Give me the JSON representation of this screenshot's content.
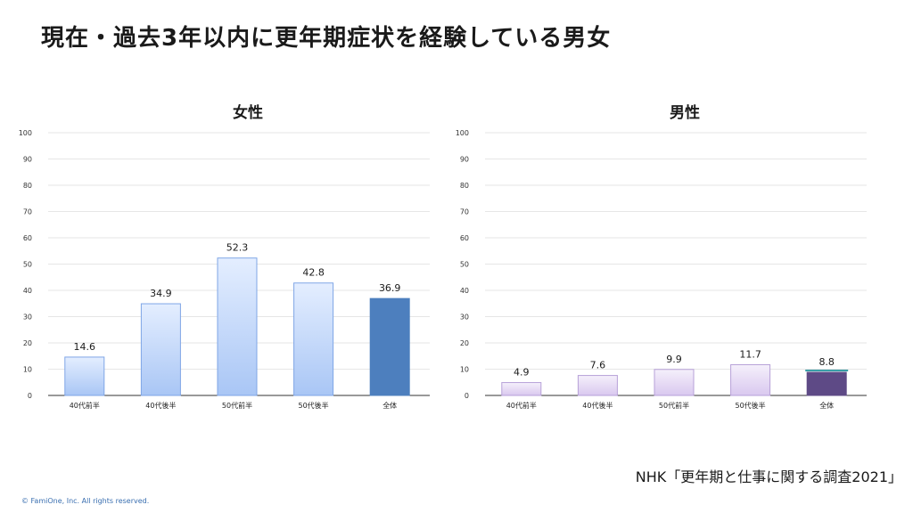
{
  "page": {
    "title": "現在・過去3年以内に更年期症状を経験している男女",
    "source": "NHK「更年期と仕事に関する調査2021」",
    "copyright": "© FamiOne, Inc. All rights reserved."
  },
  "colors": {
    "female_bar_light_top": "#e4eeff",
    "female_bar_light_bottom": "#a9c6f5",
    "female_bar_stroke": "#7fa6e6",
    "female_total": "#4d7fbe",
    "male_bar_light_top": "#f5f0fb",
    "male_bar_light_bottom": "#d9c8ef",
    "male_bar_stroke": "#b7a1d8",
    "male_total": "#5e4a86",
    "male_total_line": "#3a9fa8",
    "grid": "#e6e6e6",
    "axis": "#333333"
  },
  "chart_data": [
    {
      "type": "bar",
      "title": "女性",
      "categories": [
        "40代前半",
        "40代後半",
        "50代前半",
        "50代後半",
        "全体"
      ],
      "values": [
        14.6,
        34.9,
        52.3,
        42.8,
        36.9
      ],
      "value_labels": [
        "14.6",
        "34.9",
        "52.3",
        "42.8",
        "36.9"
      ],
      "ylim": [
        0,
        100
      ],
      "yticks": [
        "0",
        "10",
        "20",
        "30",
        "40",
        "50",
        "60",
        "70",
        "80",
        "90",
        "100"
      ],
      "grid": true,
      "highlight_category": "全体"
    },
    {
      "type": "bar",
      "title": "男性",
      "categories": [
        "40代前半",
        "40代後半",
        "50代前半",
        "50代後半",
        "全体"
      ],
      "values": [
        4.9,
        7.6,
        9.9,
        11.7,
        8.8
      ],
      "value_labels": [
        "4.9",
        "7.6",
        "9.9",
        "11.7",
        "8.8"
      ],
      "ylim": [
        0,
        100
      ],
      "yticks": [
        "0",
        "10",
        "20",
        "30",
        "40",
        "50",
        "60",
        "70",
        "80",
        "90",
        "100"
      ],
      "grid": true,
      "highlight_category": "全体"
    }
  ]
}
